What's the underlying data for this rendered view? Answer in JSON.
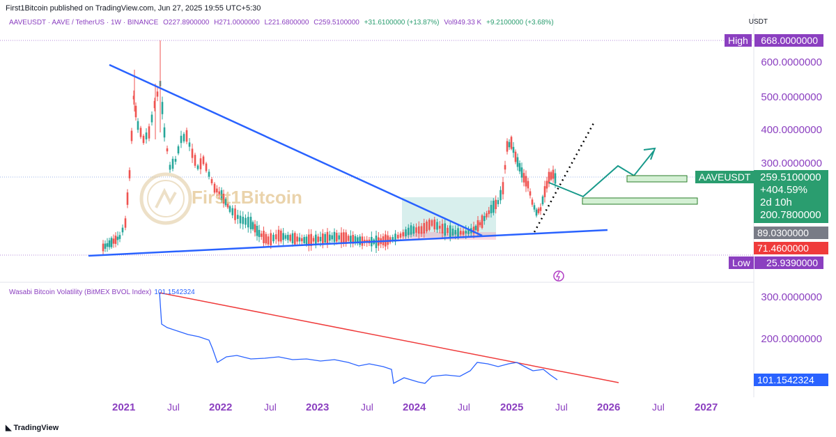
{
  "publisher_line": "First1Bitcoin published on TradingView.com, Jun 27, 2025 19:55 UTC+5:30",
  "legend": {
    "symbol": "AAVEUSDT · AAVE / TetherUS · 1W · BINANCE",
    "open": "O227.8900000",
    "high": "H271.0000000",
    "low": "L221.6800000",
    "close": "C259.5100000",
    "change": "+31.6100000 (+13.87%)",
    "vol": "Vol949.33 K",
    "vol_change": "+9.2100000 (+3.68%)"
  },
  "currency": "USDT",
  "price_axis": [
    "600.0000000",
    "500.0000000",
    "400.0000000",
    "300.0000000"
  ],
  "tags": {
    "high_label": "High",
    "high_value": "668.0000000",
    "symbol_label": "AAVEUSDT",
    "last_price": "259.5100000",
    "pct_change": "+404.59%",
    "countdown": "2d 10h",
    "level_a": "200.7800000",
    "level_b": "89.0300000",
    "level_c": "71.4600000",
    "low_label": "Low",
    "low_value": "25.9390000"
  },
  "indicator": {
    "name": "Wasabi Bitcoin Volatility (BitMEX BVOL Index)",
    "value": "101.1542324",
    "axis": [
      "300.0000000",
      "200.0000000"
    ],
    "last_tag": "101.1542324"
  },
  "time_axis": [
    {
      "label": "2021",
      "major": true
    },
    {
      "label": "Jul",
      "major": false
    },
    {
      "label": "2022",
      "major": true
    },
    {
      "label": "Jul",
      "major": false
    },
    {
      "label": "2023",
      "major": true
    },
    {
      "label": "Jul",
      "major": false
    },
    {
      "label": "2024",
      "major": true
    },
    {
      "label": "Jul",
      "major": false
    },
    {
      "label": "2025",
      "major": true
    },
    {
      "label": "Jul",
      "major": false
    },
    {
      "label": "2026",
      "major": true
    },
    {
      "label": "Jul",
      "major": false
    },
    {
      "label": "2027",
      "major": true
    }
  ],
  "watermark": "First1Bitcoin",
  "footer": "TradingView",
  "colors": {
    "accent_purple": "#8b3fc0",
    "up": "#26a69a",
    "down": "#ef5350",
    "trendline": "#2962ff",
    "last_tag": "#2a9d6f",
    "low_tag": "#ef3b3b",
    "grey_tag": "#787b86",
    "ind_tag": "#2962ff"
  }
}
